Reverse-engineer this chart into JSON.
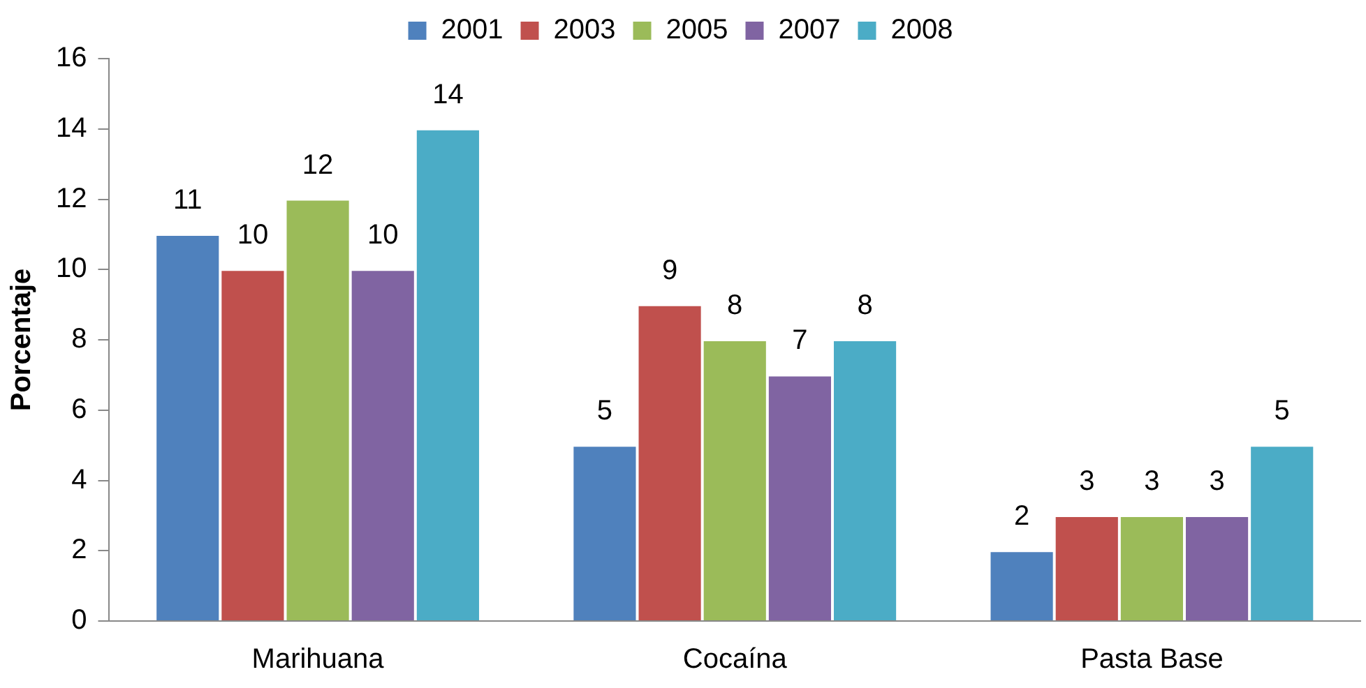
{
  "chart_data": {
    "type": "bar",
    "ylabel": "Porcentaje",
    "categories": [
      "Marihuana",
      "Cocaína",
      "Pasta Base"
    ],
    "series": [
      {
        "name": "2001",
        "color": "#4f81bd",
        "values": [
          11,
          5,
          2
        ]
      },
      {
        "name": "2003",
        "color": "#c0504d",
        "values": [
          10,
          9,
          3
        ]
      },
      {
        "name": "2005",
        "color": "#9bbb59",
        "values": [
          12,
          8,
          3
        ]
      },
      {
        "name": "2007",
        "color": "#8064a2",
        "values": [
          10,
          7,
          3
        ]
      },
      {
        "name": "2008",
        "color": "#4bacc6",
        "values": [
          14,
          8,
          5
        ]
      }
    ],
    "ylim": [
      0,
      16
    ],
    "yticks": [
      0,
      2,
      4,
      6,
      8,
      10,
      12,
      14,
      16
    ],
    "grid": false,
    "legend": "top",
    "data_labels": true
  }
}
